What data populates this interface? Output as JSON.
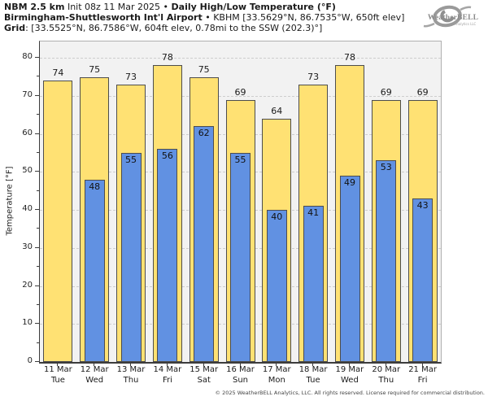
{
  "header": {
    "model_bold": "NBM 2.5 km",
    "init_text": " Init 08z 11 Mar 2025 • ",
    "product_bold": "Daily High/Low Temperature (°F)",
    "station_bold": "Birmingham-Shuttlesworth Int'l Airport",
    "station_detail": " • KBHM [33.5629°N, 86.7535°W, 650ft elev]",
    "grid_bold": "Grid",
    "grid_detail": ": [33.5525°N, 86.7586°W, 604ft elev, 0.78mi to the SSW (202.3)°]"
  },
  "logo": {
    "brand": "WeatherBELL",
    "tagline": "Analytics LLC"
  },
  "colors": {
    "figure_bg": "#ffffff",
    "plot_bg": "#f2f2f2",
    "grid_line": "#cdcdcd",
    "axis": "#3c3c3c",
    "high_fill": "#ffe173",
    "low_fill": "#6191e2",
    "bar_border": "#4d4d4d"
  },
  "chart_data": {
    "type": "bar",
    "title": "NBM 2.5 km Daily High/Low Temperature (°F) — Birmingham-Shuttlesworth Int'l Airport (KBHM)",
    "ylabel": "Temperature [°F]",
    "xlabel": "",
    "ylim": [
      0,
      84.3
    ],
    "yticks": [
      0,
      10,
      20,
      30,
      40,
      50,
      60,
      70,
      80
    ],
    "yticks_minor": [
      5,
      15,
      25,
      35,
      45,
      55,
      65,
      75
    ],
    "grid": "horizontal-dashed",
    "legend": "none",
    "categories": [
      {
        "date": "11 Mar",
        "day": "Tue"
      },
      {
        "date": "12 Mar",
        "day": "Wed"
      },
      {
        "date": "13 Mar",
        "day": "Thu"
      },
      {
        "date": "14 Mar",
        "day": "Fri"
      },
      {
        "date": "15 Mar",
        "day": "Sat"
      },
      {
        "date": "16 Mar",
        "day": "Sun"
      },
      {
        "date": "17 Mar",
        "day": "Mon"
      },
      {
        "date": "18 Mar",
        "day": "Tue"
      },
      {
        "date": "19 Mar",
        "day": "Wed"
      },
      {
        "date": "20 Mar",
        "day": "Thu"
      },
      {
        "date": "21 Mar",
        "day": "Fri"
      }
    ],
    "series": [
      {
        "name": "Daily High",
        "color": "#ffe173",
        "values": [
          74,
          75,
          73,
          78,
          75,
          69,
          64,
          73,
          78,
          69,
          69
        ]
      },
      {
        "name": "Daily Low",
        "color": "#6191e2",
        "values": [
          null,
          48,
          55,
          56,
          62,
          55,
          40,
          41,
          49,
          53,
          43
        ]
      }
    ]
  },
  "footer": "© 2025 WeatherBELL Analytics, LLC. All rights reserved. License required for commercial distribution."
}
